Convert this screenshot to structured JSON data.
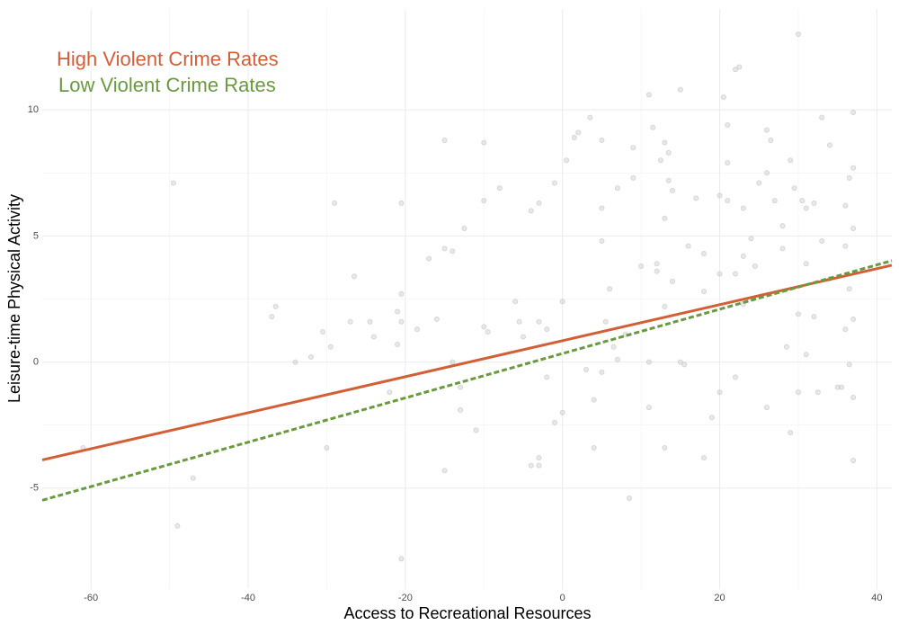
{
  "chart_data": {
    "type": "scatter",
    "xlabel": "Access to Recreational Resources",
    "ylabel": "Leisure-time Physical Activity",
    "xlim": [
      -66.2,
      41.9
    ],
    "ylim": [
      -9,
      14
    ],
    "xticks": [
      -60,
      -40,
      -20,
      0,
      20,
      40
    ],
    "yticks": [
      -5,
      0,
      5,
      10
    ],
    "grid": true,
    "legend": "top-left",
    "point_color": "#bdbdbd",
    "x": [
      -49.5,
      -61,
      -47,
      -49,
      -36.5,
      -37,
      -34,
      -32,
      -30.5,
      -29.5,
      -29,
      -30,
      -26.5,
      -27,
      -24.5,
      -24,
      -22,
      -21,
      -20.5,
      -20.5,
      -21,
      -20.5,
      -20.5,
      -18.5,
      -17,
      -15,
      -15,
      -14,
      -16,
      -15,
      -14,
      -13,
      -13,
      -12.5,
      -11,
      -10,
      -10,
      -10,
      -9.5,
      -8,
      -6,
      -5.5,
      -5,
      -4,
      -3,
      -4,
      -3,
      -3,
      -3,
      -2,
      -2,
      -1,
      0,
      0,
      -1,
      0.5,
      1.5,
      2,
      3,
      3.5,
      4,
      4,
      5,
      5,
      5,
      5,
      6,
      5.5,
      6.5,
      7,
      7,
      8,
      8.5,
      9,
      9,
      10,
      11,
      11,
      11,
      12,
      12,
      12.5,
      13,
      13,
      13,
      13.5,
      13.5,
      14,
      13,
      11.5,
      14,
      15,
      15,
      16,
      18,
      18,
      18,
      19,
      20,
      20,
      20.5,
      21,
      21,
      21,
      22,
      22.5,
      22,
      22,
      23,
      23,
      24,
      25,
      26,
      26,
      26.5,
      27,
      28,
      28,
      28.5,
      29,
      29,
      29.5,
      30,
      30,
      30,
      31,
      31,
      32,
      32,
      33,
      33,
      34,
      34,
      35.5,
      36,
      36,
      36.5,
      36.5,
      37,
      37,
      37,
      37,
      37,
      37,
      36.5,
      35,
      31,
      32.5,
      26,
      20,
      15.5,
      24.5,
      36,
      30.5,
      23,
      17
    ],
    "values": [
      7.1,
      -3.4,
      -4.6,
      -6.5,
      2.2,
      1.8,
      0,
      0.2,
      1.2,
      0.6,
      6.3,
      -3.4,
      3.4,
      1.6,
      1.6,
      1,
      -1.2,
      2,
      1.6,
      2.7,
      0.7,
      -7.8,
      6.3,
      1.3,
      4.1,
      4.5,
      8.8,
      4.4,
      1.7,
      -4.3,
      0,
      -1,
      -1.9,
      5.3,
      -2.7,
      1.4,
      8.7,
      6.4,
      1.2,
      6.9,
      2.4,
      1.6,
      1,
      6,
      6.3,
      -4.1,
      -4.1,
      -3.8,
      1.6,
      1.3,
      -0.6,
      7.1,
      2.4,
      -2,
      -2.4,
      8,
      8.9,
      9.1,
      -0.3,
      9.7,
      -3.4,
      -1.5,
      -0.4,
      4.8,
      8.8,
      6.1,
      2.9,
      1.6,
      0.6,
      6.9,
      0.1,
      1.1,
      -5.4,
      8.5,
      7.3,
      3.8,
      10.6,
      -1.8,
      0,
      3.6,
      3.9,
      8,
      -3.4,
      5.7,
      8.7,
      8.3,
      7.2,
      6.8,
      2.2,
      9.3,
      3.2,
      10.8,
      0,
      4.6,
      4.3,
      -3.8,
      2.8,
      -2.2,
      6.6,
      3.5,
      10.5,
      9.4,
      7.9,
      6.4,
      11.6,
      11.7,
      3.5,
      -0.6,
      6.1,
      2.3,
      4.9,
      7.1,
      9.2,
      7.5,
      8.8,
      6.4,
      4.5,
      5.4,
      0.6,
      -2.8,
      8,
      6.9,
      1.9,
      -1.2,
      13,
      6.1,
      3.9,
      6.3,
      1.8,
      9.7,
      4.8,
      3.3,
      8.6,
      -1,
      4.6,
      6.2,
      2.9,
      -0.1,
      9.9,
      7.7,
      5.3,
      1.7,
      -1.4,
      -3.9,
      7.3,
      -1,
      0.3,
      -1.2,
      -1.8,
      -1.2,
      -0.1,
      3.8,
      1.3,
      6.4,
      4.2,
      6.5
    ],
    "lines": [
      {
        "name": "High Violent Crime Rates",
        "color": "#d35f36",
        "dash": false,
        "x": [
          -66.2,
          41.9
        ],
        "values": [
          -3.88,
          3.84
        ]
      },
      {
        "name": "Low Violent Crime Rates",
        "color": "#6a9a3f",
        "dash": true,
        "x": [
          -66.2,
          41.9
        ],
        "values": [
          -5.48,
          4.02
        ]
      }
    ]
  }
}
